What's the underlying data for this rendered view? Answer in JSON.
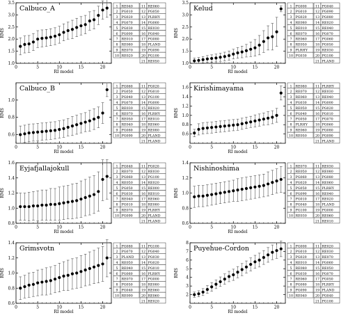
{
  "chart_data": [
    {
      "type": "scatter",
      "title": "Calbuco_A",
      "xlabel": "RI model",
      "ylabel": "RMS",
      "xlim": [
        0,
        22
      ],
      "xticks": [
        0,
        5,
        10,
        15,
        20
      ],
      "ylim": [
        1.0,
        3.5
      ],
      "yticks": [
        1.0,
        1.5,
        2.0,
        2.5,
        3.0,
        3.5
      ],
      "y_decimals": 1,
      "values": [
        1.7,
        1.78,
        1.8,
        1.88,
        2.0,
        2.03,
        2.05,
        2.08,
        2.12,
        2.18,
        2.28,
        2.35,
        2.4,
        2.48,
        2.55,
        2.6,
        2.75,
        2.8,
        2.98,
        3.2,
        3.28
      ],
      "errors": [
        0.35,
        0.35,
        0.35,
        0.35,
        0.35,
        0.35,
        0.35,
        0.35,
        0.35,
        0.35,
        0.35,
        0.35,
        0.38,
        0.38,
        0.38,
        0.38,
        0.38,
        0.38,
        0.38,
        0.38,
        0.38
      ],
      "legend": [
        "RE040",
        "PG010",
        "PG020",
        "PG070",
        "PG030",
        "PG000",
        "RE010",
        "RE080",
        "RE070",
        "RE020",
        "RE060",
        "PG050",
        "PLRHY",
        "PG060",
        "RE030",
        "PG040",
        "PG080",
        "PLAND",
        "PG090",
        "PG100",
        "RE050"
      ]
    },
    {
      "type": "scatter",
      "title": "Kelud",
      "xlabel": "RI model",
      "ylabel": "RMS",
      "xlim": [
        0,
        22
      ],
      "xticks": [
        0,
        5,
        10,
        15,
        20
      ],
      "ylim": [
        1.0,
        3.5
      ],
      "yticks": [
        1.0,
        1.5,
        2.0,
        2.5,
        3.0,
        3.5
      ],
      "y_decimals": 1,
      "values": [
        1.1,
        1.12,
        1.15,
        1.18,
        1.2,
        1.22,
        1.25,
        1.28,
        1.32,
        1.38,
        1.43,
        1.47,
        1.52,
        1.58,
        1.64,
        1.75,
        1.9,
        2.05,
        2.1,
        2.3,
        3.25
      ],
      "errors": [
        0.12,
        0.12,
        0.13,
        0.14,
        0.15,
        0.16,
        0.17,
        0.18,
        0.19,
        0.2,
        0.22,
        0.24,
        0.26,
        0.3,
        0.34,
        0.4,
        0.45,
        0.5,
        0.55,
        0.6,
        0.12
      ],
      "legend": [
        "PG000",
        "PG010",
        "PG020",
        "RE080",
        "RE010",
        "RE070",
        "RE060",
        "RE050",
        "PLRHY",
        "PG030",
        "PG040",
        "PG090",
        "PG080",
        "RE020",
        "RE040",
        "PG070",
        "PG060",
        "PG050",
        "RE030",
        "PG100",
        "PLAND"
      ]
    },
    {
      "type": "scatter",
      "title": "Calbuco_B",
      "xlabel": "RI model",
      "ylabel": "RMS",
      "xlim": [
        0,
        22
      ],
      "xticks": [
        0,
        5,
        10,
        15,
        20
      ],
      "ylim": [
        0.5,
        1.2
      ],
      "yticks": [
        0.6,
        0.8,
        1.0
      ],
      "y_decimals": 1,
      "values": [
        0.6,
        0.61,
        0.62,
        0.625,
        0.63,
        0.635,
        0.64,
        0.645,
        0.65,
        0.66,
        0.67,
        0.685,
        0.7,
        0.715,
        0.73,
        0.745,
        0.76,
        0.78,
        0.8,
        0.85,
        1.12
      ],
      "errors": [
        0.1,
        0.1,
        0.1,
        0.1,
        0.1,
        0.1,
        0.1,
        0.1,
        0.1,
        0.1,
        0.1,
        0.1,
        0.11,
        0.11,
        0.11,
        0.11,
        0.12,
        0.12,
        0.12,
        0.12,
        0.08
      ],
      "legend": [
        "PG060",
        "PG050",
        "PG040",
        "PG070",
        "RE030",
        "RE070",
        "RE050",
        "RE040",
        "PG080",
        "PG090",
        "PG020",
        "PG010",
        "PG100",
        "PG000",
        "RE020",
        "PLRHY",
        "RE010",
        "RE060",
        "RE080",
        "PLAND",
        "PLAND"
      ]
    },
    {
      "type": "scatter",
      "title": "Kirishimayama",
      "xlabel": "RI model",
      "ylabel": "RMS",
      "xlim": [
        0,
        22
      ],
      "xticks": [
        0,
        5,
        10,
        15,
        20
      ],
      "ylim": [
        0.4,
        1.7
      ],
      "yticks": [
        0.6,
        0.8,
        1.0,
        1.2,
        1.4,
        1.6
      ],
      "y_decimals": 1,
      "values": [
        0.62,
        0.7,
        0.72,
        0.73,
        0.74,
        0.75,
        0.76,
        0.77,
        0.78,
        0.79,
        0.8,
        0.82,
        0.84,
        0.86,
        0.88,
        0.9,
        0.92,
        0.94,
        0.96,
        1.0,
        1.48
      ],
      "errors": [
        0.08,
        0.12,
        0.12,
        0.12,
        0.12,
        0.12,
        0.12,
        0.12,
        0.12,
        0.12,
        0.12,
        0.12,
        0.12,
        0.12,
        0.13,
        0.13,
        0.13,
        0.14,
        0.14,
        0.15,
        0.15
      ],
      "legend": [
        "RE080",
        "RE070",
        "RE060",
        "PG030",
        "RE050",
        "PG040",
        "PG050",
        "PLRHY",
        "RE060",
        "RE050",
        "PLRHY",
        "RE030",
        "RE040",
        "PG000",
        "PG020",
        "PG010",
        "PG070",
        "PG060",
        "PG080",
        "PG090",
        "PLAND"
      ]
    },
    {
      "type": "scatter",
      "title": "Eyjafjallajokull",
      "xlabel": "RI model",
      "ylabel": "RMS",
      "xlim": [
        0,
        22
      ],
      "xticks": [
        0,
        5,
        10,
        15,
        20
      ],
      "ylim": [
        0.8,
        1.6
      ],
      "yticks": [
        0.8,
        1.0,
        1.2,
        1.4,
        1.6
      ],
      "y_decimals": 1,
      "values": [
        1.02,
        1.02,
        1.02,
        1.03,
        1.03,
        1.04,
        1.04,
        1.05,
        1.05,
        1.06,
        1.07,
        1.08,
        1.09,
        1.1,
        1.12,
        1.14,
        1.16,
        1.18,
        1.22,
        1.38,
        1.42
      ],
      "errors": [
        0.18,
        0.18,
        0.19,
        0.19,
        0.2,
        0.2,
        0.2,
        0.21,
        0.21,
        0.22,
        0.22,
        0.22,
        0.23,
        0.23,
        0.24,
        0.24,
        0.25,
        0.25,
        0.26,
        0.28,
        0.3
      ],
      "legend": [
        "PG040",
        "RE070",
        "PG060",
        "RE050",
        "PG050",
        "PG030",
        "RE040",
        "PG010",
        "RE070",
        "PG090",
        "PG020",
        "RE030",
        "PG100",
        "RE020",
        "RE000",
        "RE010",
        "RE060",
        "RE080",
        "PLRHY",
        "PLAND",
        "PLAND"
      ]
    },
    {
      "type": "scatter",
      "title": "Nishinoshima",
      "xlabel": "RI model",
      "ylabel": "RMS",
      "xlim": [
        0,
        22
      ],
      "xticks": [
        0,
        5,
        10,
        15,
        20
      ],
      "ylim": [
        0.6,
        1.4
      ],
      "yticks": [
        0.6,
        0.8,
        1.0,
        1.2,
        1.4
      ],
      "y_decimals": 1,
      "values": [
        0.95,
        0.96,
        0.96,
        0.97,
        0.98,
        0.99,
        1.0,
        1.01,
        1.02,
        1.03,
        1.04,
        1.05,
        1.06,
        1.07,
        1.08,
        1.09,
        1.1,
        1.12,
        1.14,
        1.16,
        1.18
      ],
      "errors": [
        0.14,
        0.14,
        0.14,
        0.14,
        0.14,
        0.14,
        0.14,
        0.14,
        0.14,
        0.14,
        0.15,
        0.15,
        0.15,
        0.15,
        0.15,
        0.15,
        0.15,
        0.16,
        0.16,
        0.16,
        0.17
      ],
      "legend": [
        "RE070",
        "RE050",
        "PG060",
        "PG020",
        "PG050",
        "PG090",
        "PG010",
        "PG040",
        "PG100",
        "RE030",
        "RE030",
        "RE080",
        "PG080",
        "RE060",
        "PLRHY",
        "RE040",
        "RE020",
        "PLAND",
        "PG000",
        "RE060",
        "RE010"
      ]
    },
    {
      "type": "scatter",
      "title": "Grimsvotn",
      "xlabel": "RI model",
      "ylabel": "RMS",
      "xlim": [
        0,
        22
      ],
      "xticks": [
        0,
        5,
        10,
        15,
        20
      ],
      "ylim": [
        0.6,
        1.4
      ],
      "yticks": [
        0.6,
        0.8,
        1.0,
        1.2,
        1.4
      ],
      "y_decimals": 1,
      "values": [
        0.8,
        0.82,
        0.84,
        0.85,
        0.87,
        0.88,
        0.89,
        0.9,
        0.92,
        0.94,
        0.96,
        0.97,
        0.99,
        1.0,
        1.02,
        1.04,
        1.06,
        1.08,
        1.1,
        1.12,
        1.2
      ],
      "errors": [
        0.15,
        0.15,
        0.16,
        0.16,
        0.17,
        0.17,
        0.18,
        0.18,
        0.18,
        0.19,
        0.19,
        0.2,
        0.2,
        0.2,
        0.21,
        0.21,
        0.22,
        0.22,
        0.23,
        0.23,
        0.25
      ],
      "legend": [
        "PG080",
        "PG070",
        "PLAND",
        "RE050",
        "RE040",
        "PG060",
        "RE070",
        "PG050",
        "PG040",
        "RE090",
        "PG100",
        "PG040",
        "PG030",
        "PG020",
        "PG010",
        "PLRHY",
        "PG000",
        "RE080",
        "RE060",
        "RE060",
        "RE020"
      ]
    },
    {
      "type": "scatter",
      "title": "Puyehue-Cordon",
      "xlabel": "RI model",
      "ylabel": "RMS",
      "xlim": [
        0,
        22
      ],
      "xticks": [
        0,
        5,
        10,
        15,
        20
      ],
      "ylim": [
        1,
        8
      ],
      "yticks": [
        2,
        3,
        4,
        5,
        6,
        7,
        8
      ],
      "y_decimals": 0,
      "values": [
        2.0,
        2.1,
        2.3,
        2.6,
        2.9,
        3.2,
        3.5,
        3.8,
        4.1,
        4.3,
        4.6,
        4.9,
        5.2,
        5.5,
        5.8,
        6.0,
        6.3,
        6.6,
        6.9,
        7.1,
        7.3
      ],
      "errors": [
        0.3,
        0.35,
        0.4,
        0.45,
        0.5,
        0.5,
        0.55,
        0.6,
        0.6,
        0.65,
        0.65,
        0.7,
        0.7,
        0.75,
        0.75,
        0.8,
        0.8,
        0.85,
        0.85,
        0.9,
        0.9
      ],
      "legend": [
        "PG000",
        "PG010",
        "PG020",
        "RE010",
        "RE080",
        "PG030",
        "RE060",
        "PG080",
        "PG090",
        "RE040",
        "RE020",
        "RE030",
        "RE070",
        "PG060",
        "RE050",
        "PG070",
        "PG050",
        "PLRHY",
        "PLAND",
        "PG040",
        "PG100"
      ]
    }
  ]
}
